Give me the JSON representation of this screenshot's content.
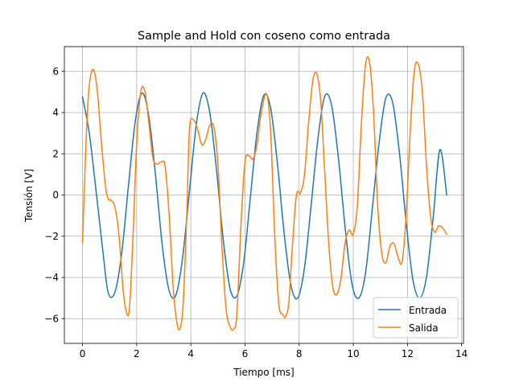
{
  "chart_data": {
    "type": "line",
    "title": "Sample and Hold con coseno como entrada",
    "xlabel": "Tiempo [ms]",
    "ylabel": "Tensión [V]",
    "xlim": [
      -0.67,
      14.07
    ],
    "ylim": [
      -7.2,
      7.2
    ],
    "xticks": [
      0,
      2,
      4,
      6,
      8,
      10,
      12,
      14
    ],
    "yticks": [
      -6,
      -4,
      -2,
      0,
      2,
      4,
      6
    ],
    "xtick_labels": [
      "0",
      "2",
      "4",
      "6",
      "8",
      "10",
      "12",
      "14"
    ],
    "ytick_labels": [
      "−6",
      "−4",
      "−2",
      "0",
      "2",
      "4",
      "6"
    ],
    "grid": true,
    "legend_position": "lower-right",
    "series": [
      {
        "name": "Entrada",
        "color": "#1f77b4",
        "x": [
          0,
          0.25,
          0.5,
          0.75,
          0.95,
          1.2,
          1.45,
          1.7,
          1.95,
          2.2,
          2.45,
          2.7,
          2.95,
          3.2,
          3.45,
          3.7,
          3.95,
          4.2,
          4.45,
          4.7,
          4.95,
          5.2,
          5.45,
          5.7,
          5.95,
          6.2,
          6.45,
          6.7,
          6.95,
          7.2,
          7.45,
          7.7,
          7.95,
          8.2,
          8.45,
          8.7,
          8.95,
          9.2,
          9.45,
          9.7,
          9.95,
          10.2,
          10.45,
          10.7,
          10.95,
          11.2,
          11.45,
          11.7,
          11.95,
          12.2,
          12.45,
          12.7,
          12.95,
          13.2,
          13.45
        ],
        "y": [
          4.75,
          3.0,
          0.2,
          -2.7,
          -4.75,
          -4.7,
          -2.8,
          0.5,
          3.6,
          4.95,
          3.8,
          0.9,
          -2.5,
          -4.65,
          -4.85,
          -3.0,
          0.2,
          3.4,
          4.95,
          4.0,
          1.2,
          -2.2,
          -4.55,
          -4.9,
          -3.3,
          -0.1,
          3.1,
          4.85,
          4.2,
          1.5,
          -1.9,
          -4.4,
          -5.0,
          -3.5,
          -0.4,
          2.8,
          4.8,
          4.35,
          1.8,
          -1.6,
          -4.3,
          -5.0,
          -3.8,
          -0.7,
          2.5,
          4.7,
          4.5,
          2.1,
          -1.3,
          -4.1,
          -5.0,
          -4.0,
          -1.1,
          2.2,
          0.0
        ]
      },
      {
        "name": "Salida",
        "color": "#ff7f0e",
        "x": [
          0,
          0.1,
          0.2,
          0.3,
          0.42,
          0.55,
          0.7,
          0.85,
          0.95,
          1.05,
          1.2,
          1.35,
          1.5,
          1.65,
          1.75,
          1.88,
          2.0,
          2.15,
          2.3,
          2.45,
          2.6,
          2.75,
          2.9,
          3.05,
          3.2,
          3.35,
          3.5,
          3.62,
          3.72,
          3.85,
          3.95,
          4.1,
          4.25,
          4.4,
          4.55,
          4.7,
          4.85,
          5.0,
          5.15,
          5.3,
          5.45,
          5.58,
          5.7,
          5.85,
          6.0,
          6.15,
          6.3,
          6.45,
          6.6,
          6.8,
          6.95,
          7.1,
          7.25,
          7.4,
          7.5,
          7.62,
          7.75,
          7.9,
          8.05,
          8.2,
          8.35,
          8.5,
          8.65,
          8.8,
          8.95,
          9.1,
          9.25,
          9.4,
          9.55,
          9.7,
          9.85,
          10.0,
          10.15,
          10.3,
          10.45,
          10.6,
          10.75,
          10.9,
          11.05,
          11.2,
          11.35,
          11.5,
          11.65,
          11.8,
          11.95,
          12.1,
          12.25,
          12.4,
          12.55,
          12.7,
          12.85,
          13.0,
          13.15,
          13.3,
          13.45
        ],
        "y": [
          -2.3,
          1.5,
          4.5,
          5.8,
          6.05,
          5.0,
          2.5,
          0.4,
          -0.2,
          -0.25,
          -0.6,
          -2.0,
          -4.6,
          -5.8,
          -5.2,
          -1.5,
          2.5,
          5.0,
          5.05,
          3.5,
          1.8,
          1.5,
          1.6,
          1.4,
          -1.0,
          -4.5,
          -6.3,
          -6.4,
          -5.2,
          -1.0,
          3.2,
          3.65,
          3.2,
          2.45,
          2.7,
          3.4,
          3.3,
          1.5,
          -2.5,
          -5.5,
          -6.4,
          -6.5,
          -5.8,
          -1.5,
          1.6,
          1.9,
          1.75,
          2.5,
          4.0,
          4.9,
          3.0,
          -2.0,
          -5.3,
          -5.8,
          -5.9,
          -5.2,
          -2.5,
          0.0,
          0.1,
          1.0,
          3.5,
          5.5,
          5.9,
          4.5,
          1.0,
          -2.5,
          -4.5,
          -4.8,
          -4.0,
          -2.3,
          -1.7,
          -1.9,
          -0.5,
          3.5,
          6.3,
          6.45,
          4.0,
          -0.5,
          -2.8,
          -3.3,
          -2.5,
          -2.35,
          -3.0,
          -3.25,
          -1.0,
          3.0,
          6.0,
          6.35,
          5.0,
          1.5,
          -1.0,
          -1.8,
          -1.5,
          -1.6,
          -1.9
        ]
      }
    ]
  }
}
